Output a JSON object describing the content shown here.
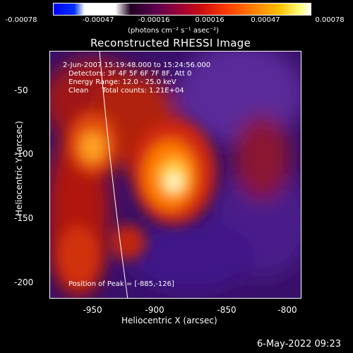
{
  "colorbar": {
    "ticks": [
      "-0.00078",
      "-0.00047",
      "-0.00016",
      "0.00016",
      "0.00047",
      "0.00078"
    ],
    "units": "(photons cm⁻² s⁻¹ asec⁻²)"
  },
  "title": "Reconstructed RHESSI Image",
  "annotations": {
    "time": "2-Jun-2007 15:19:48.000 to 15:24:56.000",
    "detectors": "Detectors: 3F 4F 5F 6F 7F 8F, Att 0",
    "energy": "Energy Range: 12.0 - 25.0 keV",
    "method": "Clean      Total counts: 1.21E+04",
    "peak": "Position of Peak = [-885,-126]"
  },
  "axes": {
    "xlabel": "Heliocentric X (arcsec)",
    "ylabel": "Heliocentric Y (arcsec)",
    "xticks": [
      "-950",
      "-900",
      "-850",
      "-800"
    ],
    "yticks": [
      "-50",
      "-100",
      "-150",
      "-200"
    ],
    "xrange": [
      -975,
      -785
    ],
    "yrange": [
      -213,
      -27
    ]
  },
  "timestamp": "6-May-2022 09:23"
}
